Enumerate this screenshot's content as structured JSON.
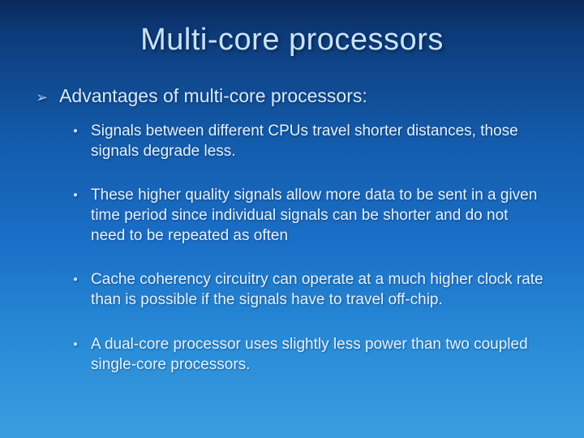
{
  "slide": {
    "title": "Multi-core processors",
    "title_fontsize": 38,
    "title_color": "#c8e2ff",
    "top_bullet_icon": "➢",
    "top_bullet_color": "#9fd0ff",
    "top_bullet_fontsize": 18,
    "top_text": "Advantages of multi-core processors:",
    "top_text_fontsize": 23,
    "top_text_color": "#d6eaff",
    "sub_bullet_icon": "●",
    "sub_bullet_color": "#bfe0ff",
    "sub_bullet_fontsize": 10,
    "sub_text_fontsize": 19,
    "sub_text_color": "#e4f1ff",
    "sub_items": [
      "Signals between different CPUs travel shorter distances, those signals degrade less.",
      "These higher quality signals allow more data to be sent in a given time period since individual signals can be shorter and do not need to be repeated as often",
      "Cache coherency circuitry can operate at a much higher clock rate than is possible if the signals have to travel off-chip.",
      "A dual-core processor uses slightly less power than two coupled single-core processors."
    ]
  }
}
